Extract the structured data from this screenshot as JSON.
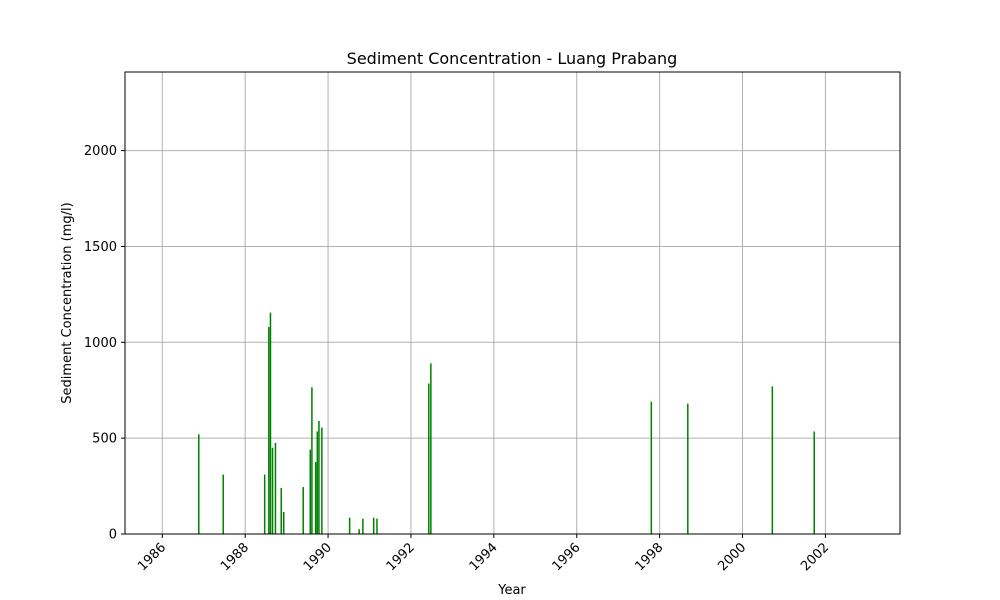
{
  "chart_data": {
    "type": "bar",
    "title": "Sediment Concentration - Luang Prabang",
    "xlabel": "Year",
    "ylabel": "Sediment Concentration (mg/l)",
    "xlim": [
      1985.1,
      2003.8
    ],
    "ylim": [
      0,
      2410
    ],
    "grid": true,
    "bar_color": "#008000",
    "x_ticks": [
      1986,
      1988,
      1990,
      1992,
      1994,
      1996,
      1998,
      2000,
      2002
    ],
    "y_ticks": [
      0,
      500,
      1000,
      1500,
      2000
    ],
    "x": [
      1986.88,
      1987.47,
      1988.47,
      1988.57,
      1988.61,
      1988.66,
      1988.73,
      1988.87,
      1988.93,
      1989.4,
      1989.57,
      1989.61,
      1989.7,
      1989.74,
      1989.78,
      1989.85,
      1990.52,
      1990.75,
      1990.84,
      1991.1,
      1991.18,
      1992.43,
      1992.48,
      1997.8,
      1998.68,
      2000.72,
      2001.73
    ],
    "values": [
      520,
      310,
      310,
      1080,
      1155,
      450,
      475,
      240,
      115,
      245,
      440,
      765,
      375,
      535,
      590,
      555,
      85,
      25,
      80,
      85,
      80,
      785,
      890,
      690,
      680,
      770,
      535
    ]
  }
}
